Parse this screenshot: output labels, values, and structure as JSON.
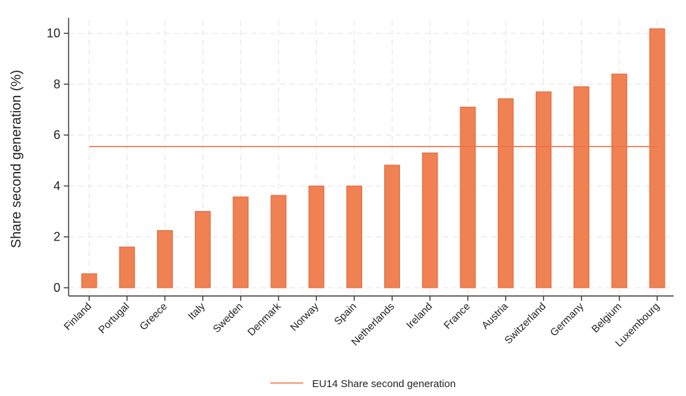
{
  "chart_data": {
    "type": "bar",
    "title": "",
    "xlabel": "",
    "ylabel": "Share second generation (%)",
    "ylim": [
      0,
      10.5
    ],
    "yticks": [
      0,
      2,
      4,
      6,
      8,
      10
    ],
    "grid": true,
    "categories": [
      "Finland",
      "Portugal",
      "Greece",
      "Italy",
      "Sweden",
      "Denmark",
      "Norway",
      "Spain",
      "Netherlands",
      "Ireland",
      "France",
      "Austria",
      "Switzerland",
      "Germany",
      "Belgium",
      "Luxembourg"
    ],
    "values": [
      0.55,
      1.6,
      2.25,
      3.0,
      3.57,
      3.63,
      4.0,
      4.0,
      4.82,
      5.3,
      7.1,
      7.43,
      7.7,
      7.9,
      8.4,
      10.18
    ],
    "reference_line": {
      "name": "EU14 Share second generation",
      "value": 5.55
    },
    "legend": {
      "position": "bottom",
      "label": "EU14 Share second generation"
    },
    "colors": {
      "bar": "#EF8152",
      "bar_stroke": "#E0663A",
      "line": "#EA7447",
      "grid": "#e6e6e6",
      "axis": "#333333"
    }
  }
}
